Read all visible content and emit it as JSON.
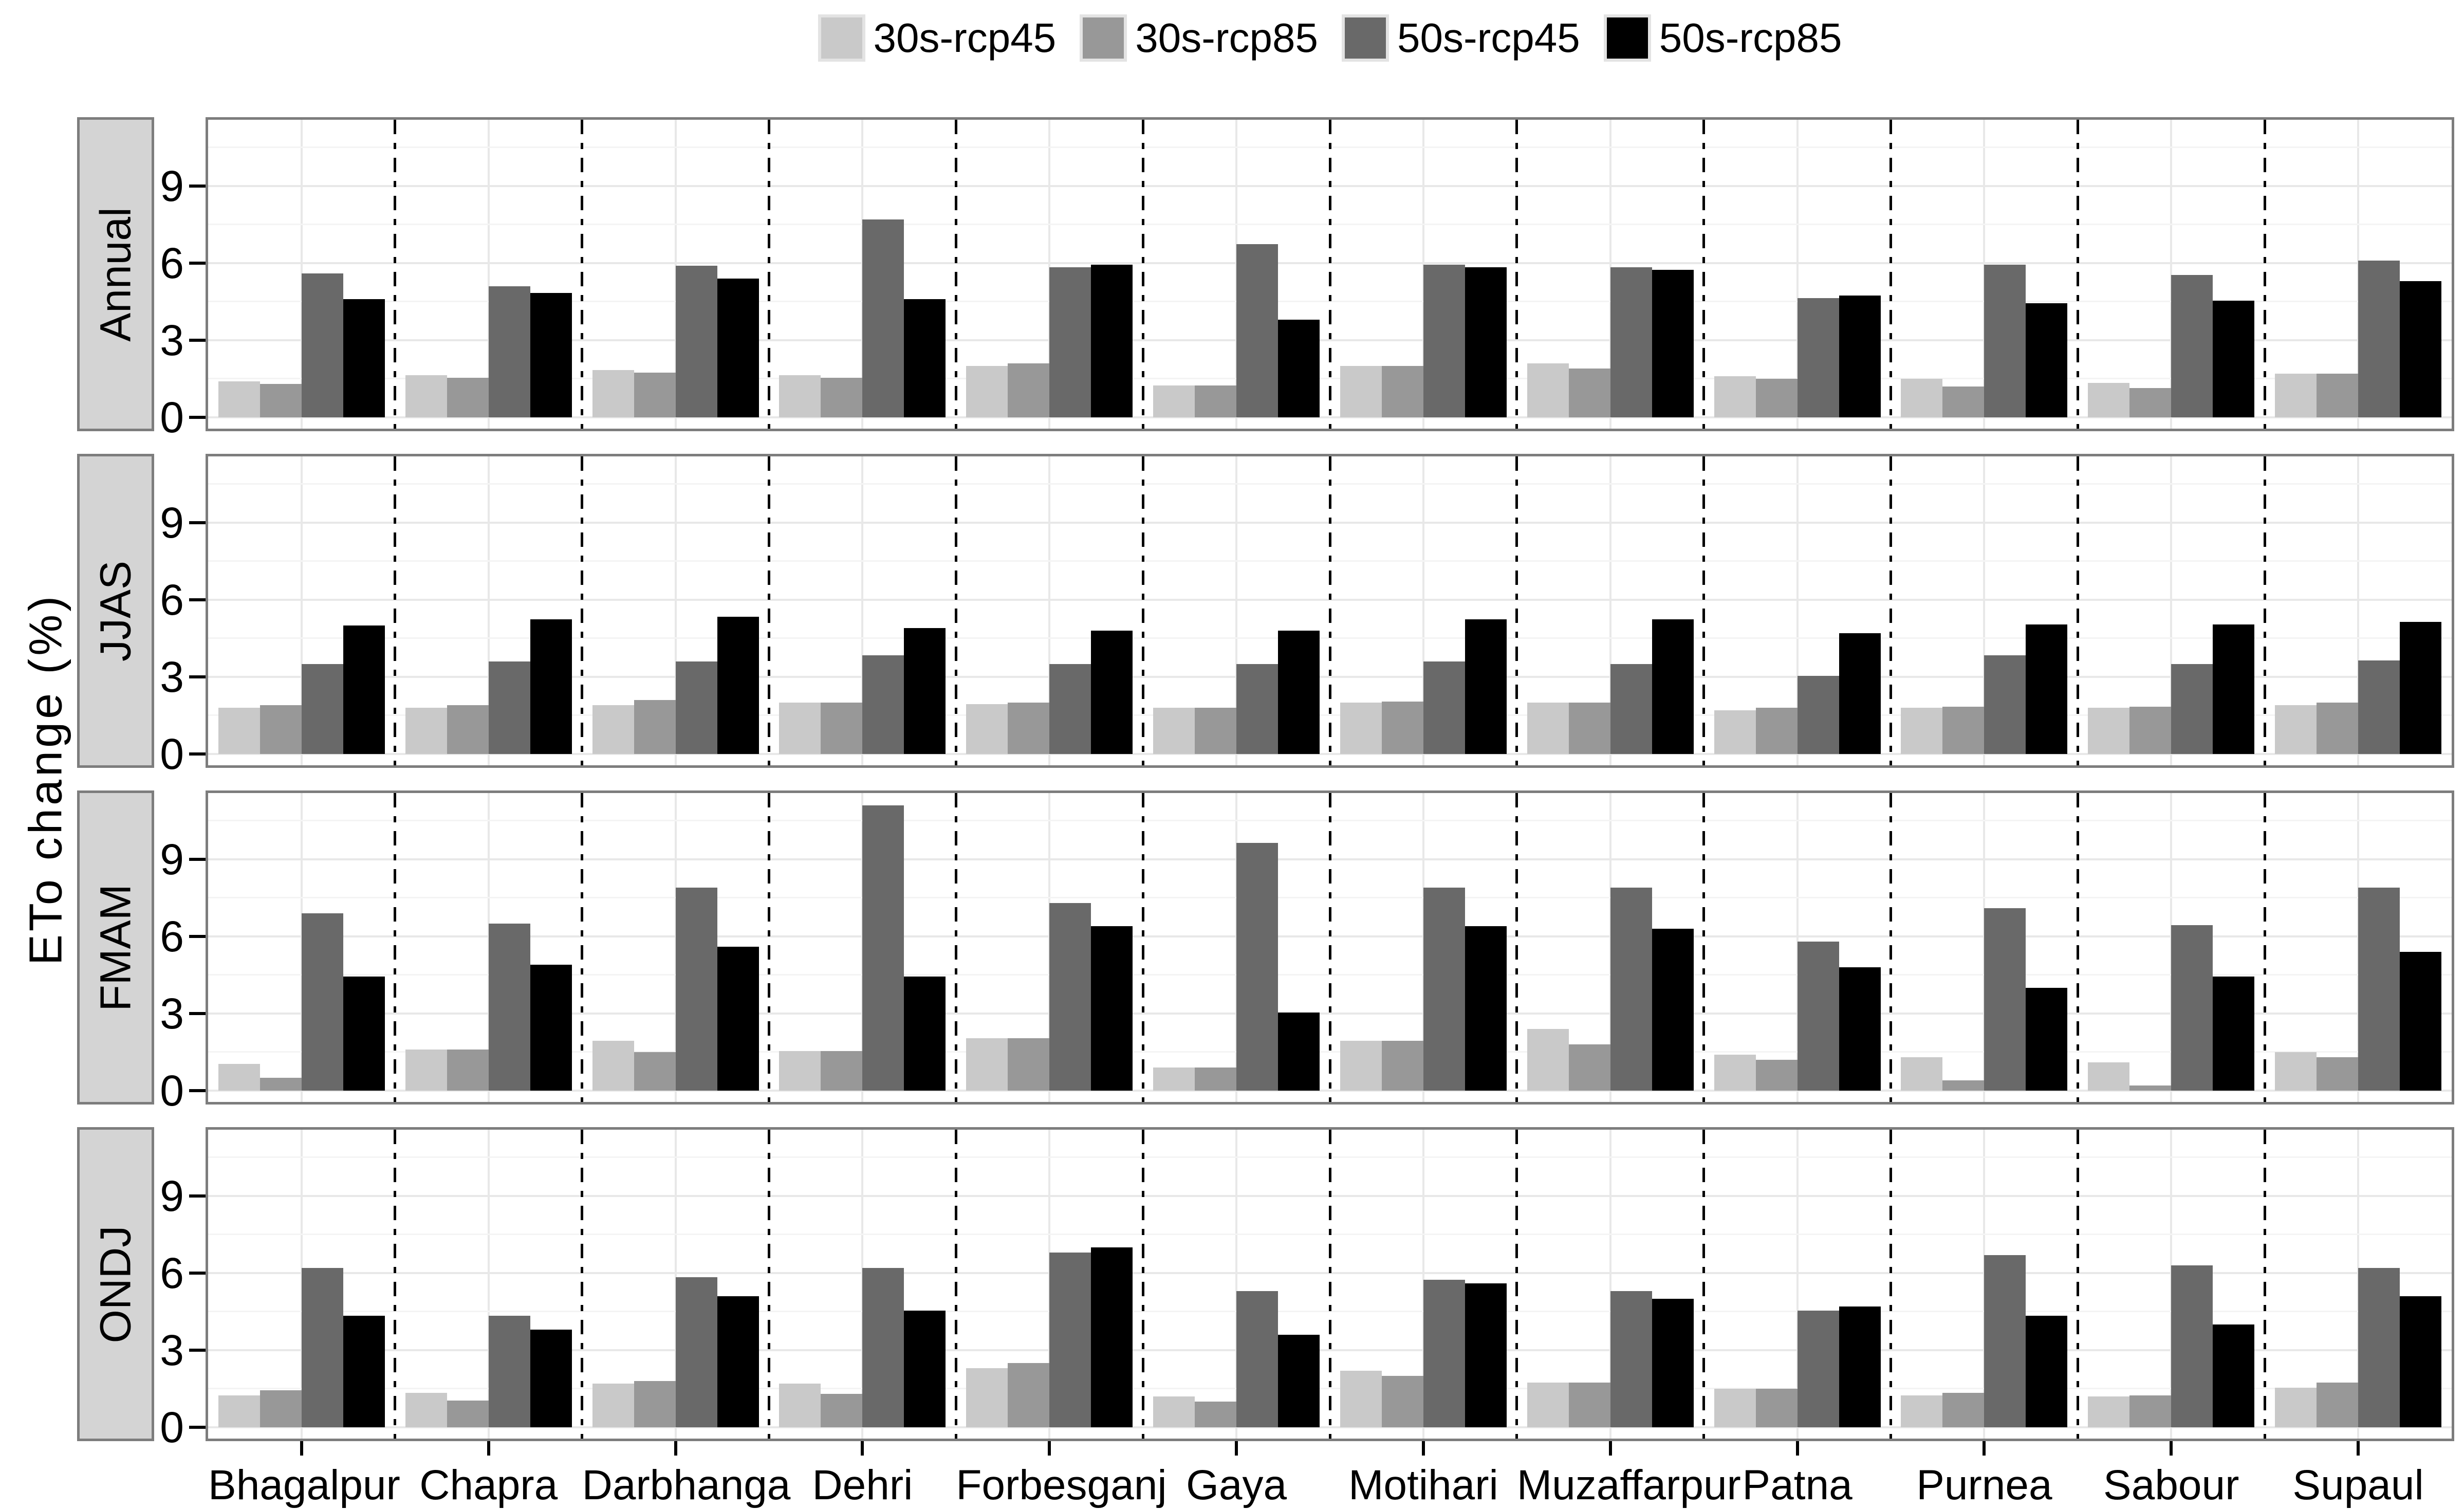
{
  "y_axis_title": "ETo change (%)",
  "legend": {
    "items": [
      {
        "label": "30s-rcp45",
        "color": "#c9c9c9"
      },
      {
        "label": "30s-rcp85",
        "color": "#989898"
      },
      {
        "label": "50s-rcp45",
        "color": "#696969"
      },
      {
        "label": "50s-rcp85",
        "color": "#000000"
      }
    ]
  },
  "chart_data": {
    "type": "bar",
    "title": "",
    "xlabel": "",
    "ylabel": "ETo change (%)",
    "legend_position": "top",
    "grid": "major+minor",
    "facet_layout": "rows",
    "yticks": [
      0,
      3,
      6,
      9
    ],
    "minor_ticks": [
      1.5,
      4.5,
      7.5,
      10.5
    ],
    "ylim": [
      0,
      11.6
    ],
    "series_names": [
      "30s-rcp45",
      "30s-rcp85",
      "50s-rcp45",
      "50s-rcp85"
    ],
    "series_colors": [
      "#c9c9c9",
      "#989898",
      "#696969",
      "#000000"
    ],
    "categories": [
      "Bhagalpur",
      "Chapra",
      "Darbhanga",
      "Dehri",
      "Forbesganj",
      "Gaya",
      "Motihari",
      "Muzaffarpur",
      "Patna",
      "Purnea",
      "Sabour",
      "Supaul"
    ],
    "rows": [
      {
        "facet": "Annual",
        "series": [
          {
            "name": "30s-rcp45",
            "values": [
              1.4,
              1.65,
              1.85,
              1.65,
              2.0,
              1.25,
              2.0,
              2.1,
              1.6,
              1.5,
              1.35,
              1.7
            ]
          },
          {
            "name": "30s-rcp85",
            "values": [
              1.3,
              1.55,
              1.75,
              1.55,
              2.1,
              1.25,
              2.0,
              1.9,
              1.5,
              1.2,
              1.15,
              1.7
            ]
          },
          {
            "name": "50s-rcp45",
            "values": [
              5.6,
              5.1,
              5.9,
              7.7,
              5.85,
              6.75,
              5.95,
              5.85,
              4.65,
              5.95,
              5.55,
              6.1
            ]
          },
          {
            "name": "50s-rcp85",
            "values": [
              4.6,
              4.85,
              5.4,
              4.6,
              5.95,
              3.8,
              5.85,
              5.75,
              4.75,
              4.45,
              4.55,
              5.3
            ]
          }
        ]
      },
      {
        "facet": "JJAS",
        "series": [
          {
            "name": "30s-rcp45",
            "values": [
              1.8,
              1.8,
              1.9,
              2.0,
              1.95,
              1.8,
              2.0,
              2.0,
              1.7,
              1.8,
              1.8,
              1.9
            ]
          },
          {
            "name": "30s-rcp85",
            "values": [
              1.9,
              1.9,
              2.1,
              2.0,
              2.0,
              1.8,
              2.05,
              2.0,
              1.8,
              1.85,
              1.85,
              2.0
            ]
          },
          {
            "name": "50s-rcp45",
            "values": [
              3.5,
              3.6,
              3.6,
              3.85,
              3.5,
              3.5,
              3.6,
              3.5,
              3.05,
              3.85,
              3.5,
              3.65
            ]
          },
          {
            "name": "50s-rcp85",
            "values": [
              5.0,
              5.25,
              5.35,
              4.9,
              4.8,
              4.8,
              5.25,
              5.25,
              4.7,
              5.05,
              5.05,
              5.15
            ]
          }
        ]
      },
      {
        "facet": "FMAM",
        "series": [
          {
            "name": "30s-rcp45",
            "values": [
              1.05,
              1.6,
              1.95,
              1.55,
              2.05,
              0.9,
              1.95,
              2.4,
              1.4,
              1.3,
              1.1,
              1.5
            ]
          },
          {
            "name": "30s-rcp85",
            "values": [
              0.5,
              1.6,
              1.5,
              1.55,
              2.05,
              0.9,
              1.95,
              1.8,
              1.2,
              0.4,
              0.2,
              1.3
            ]
          },
          {
            "name": "50s-rcp45",
            "values": [
              6.9,
              6.5,
              7.9,
              11.1,
              7.3,
              9.65,
              7.9,
              7.9,
              5.8,
              7.1,
              6.45,
              7.9
            ]
          },
          {
            "name": "50s-rcp85",
            "values": [
              4.45,
              4.9,
              5.6,
              4.45,
              6.4,
              3.05,
              6.4,
              6.3,
              4.8,
              4.0,
              4.45,
              5.4
            ]
          }
        ]
      },
      {
        "facet": "ONDJ",
        "series": [
          {
            "name": "30s-rcp45",
            "values": [
              1.25,
              1.35,
              1.7,
              1.7,
              2.3,
              1.2,
              2.2,
              1.75,
              1.5,
              1.25,
              1.2,
              1.55
            ]
          },
          {
            "name": "30s-rcp85",
            "values": [
              1.45,
              1.05,
              1.8,
              1.3,
              2.5,
              1.0,
              2.0,
              1.75,
              1.5,
              1.35,
              1.25,
              1.75
            ]
          },
          {
            "name": "50s-rcp45",
            "values": [
              6.2,
              4.35,
              5.85,
              6.2,
              6.8,
              5.3,
              5.75,
              5.3,
              4.55,
              6.7,
              6.3,
              6.2
            ]
          },
          {
            "name": "50s-rcp85",
            "values": [
              4.35,
              3.8,
              5.1,
              4.55,
              7.0,
              3.6,
              5.6,
              5.0,
              4.7,
              4.35,
              4.0,
              5.1
            ]
          }
        ]
      }
    ]
  }
}
